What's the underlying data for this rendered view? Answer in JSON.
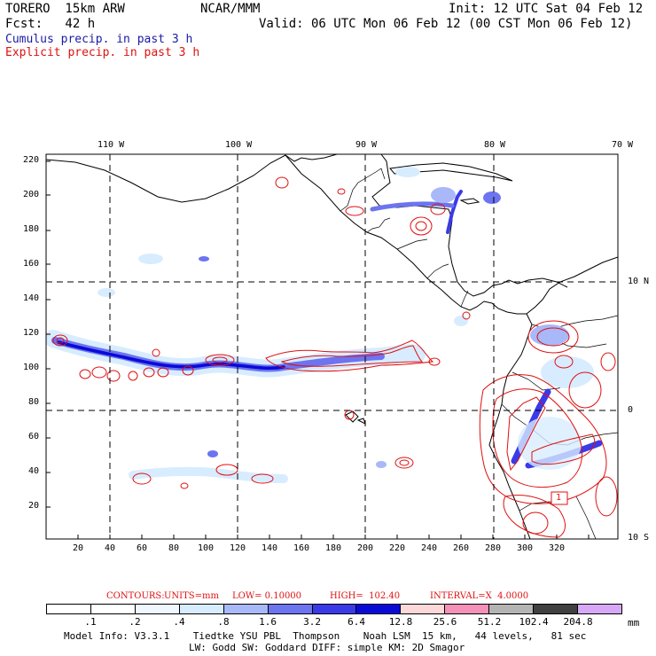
{
  "header": {
    "model_line": "TORERO  15km ARW",
    "institution": "NCAR/MMM",
    "init": "Init: 12 UTC Sat 04 Feb 12",
    "forecast": "Fcst:   42 h",
    "valid": "Valid: 06 UTC Mon 06 Feb 12 (00 CST Mon 06 Feb 12)",
    "cumulus_label": "Cumulus precip. in past 3 h",
    "explicit_label": "Explicit precip. in past 3 h"
  },
  "colors": {
    "cumulus": "#1a1aa6",
    "explicit": "#e01010",
    "contour": "#e01010",
    "coast": "#000000"
  },
  "map": {
    "lon_labels": [
      "110 W",
      "100 W",
      "90 W",
      "80 W",
      "70 W"
    ],
    "lat_labels": [
      "10 N",
      "0",
      "10 S"
    ],
    "x_ticks": [
      "20",
      "40",
      "60",
      "80",
      "100",
      "120",
      "140",
      "160",
      "180",
      "200",
      "220",
      "240",
      "260",
      "280",
      "300",
      "320"
    ],
    "y_ticks": [
      "220",
      "200",
      "180",
      "160",
      "140",
      "120",
      "100",
      "80",
      "60",
      "40",
      "20"
    ],
    "box_label": "1"
  },
  "contours": {
    "prefix": "CONTOURS:",
    "units": "UNITS=mm",
    "low": "LOW= 0.10000",
    "high": "HIGH=  102.40",
    "interval": "INTERVAL=X  4.0000"
  },
  "colorbar": {
    "levels": [
      ".1",
      ".2",
      ".4",
      ".8",
      "1.6",
      "3.2",
      "6.4",
      "12.8",
      "25.6",
      "51.2",
      "102.4",
      "204.8"
    ],
    "colors": [
      "#ffffff",
      "#ffffff",
      "#f0f8ff",
      "#d8ecff",
      "#a8b8f8",
      "#6c74f0",
      "#3a3ae8",
      "#0a0ad8",
      "#fcd8d8",
      "#f590b8",
      "#b4b4b4",
      "#404040",
      "#d8a8f8"
    ],
    "unit": "mm"
  },
  "model_info": {
    "line1": "Model Info: V3.3.1    Tiedtke YSU PBL  Thompson    Noah LSM  15 km,   44 levels,   81 sec",
    "line2": "LW: Godd SW: Goddard DIFF: simple KM: 2D Smagor"
  }
}
